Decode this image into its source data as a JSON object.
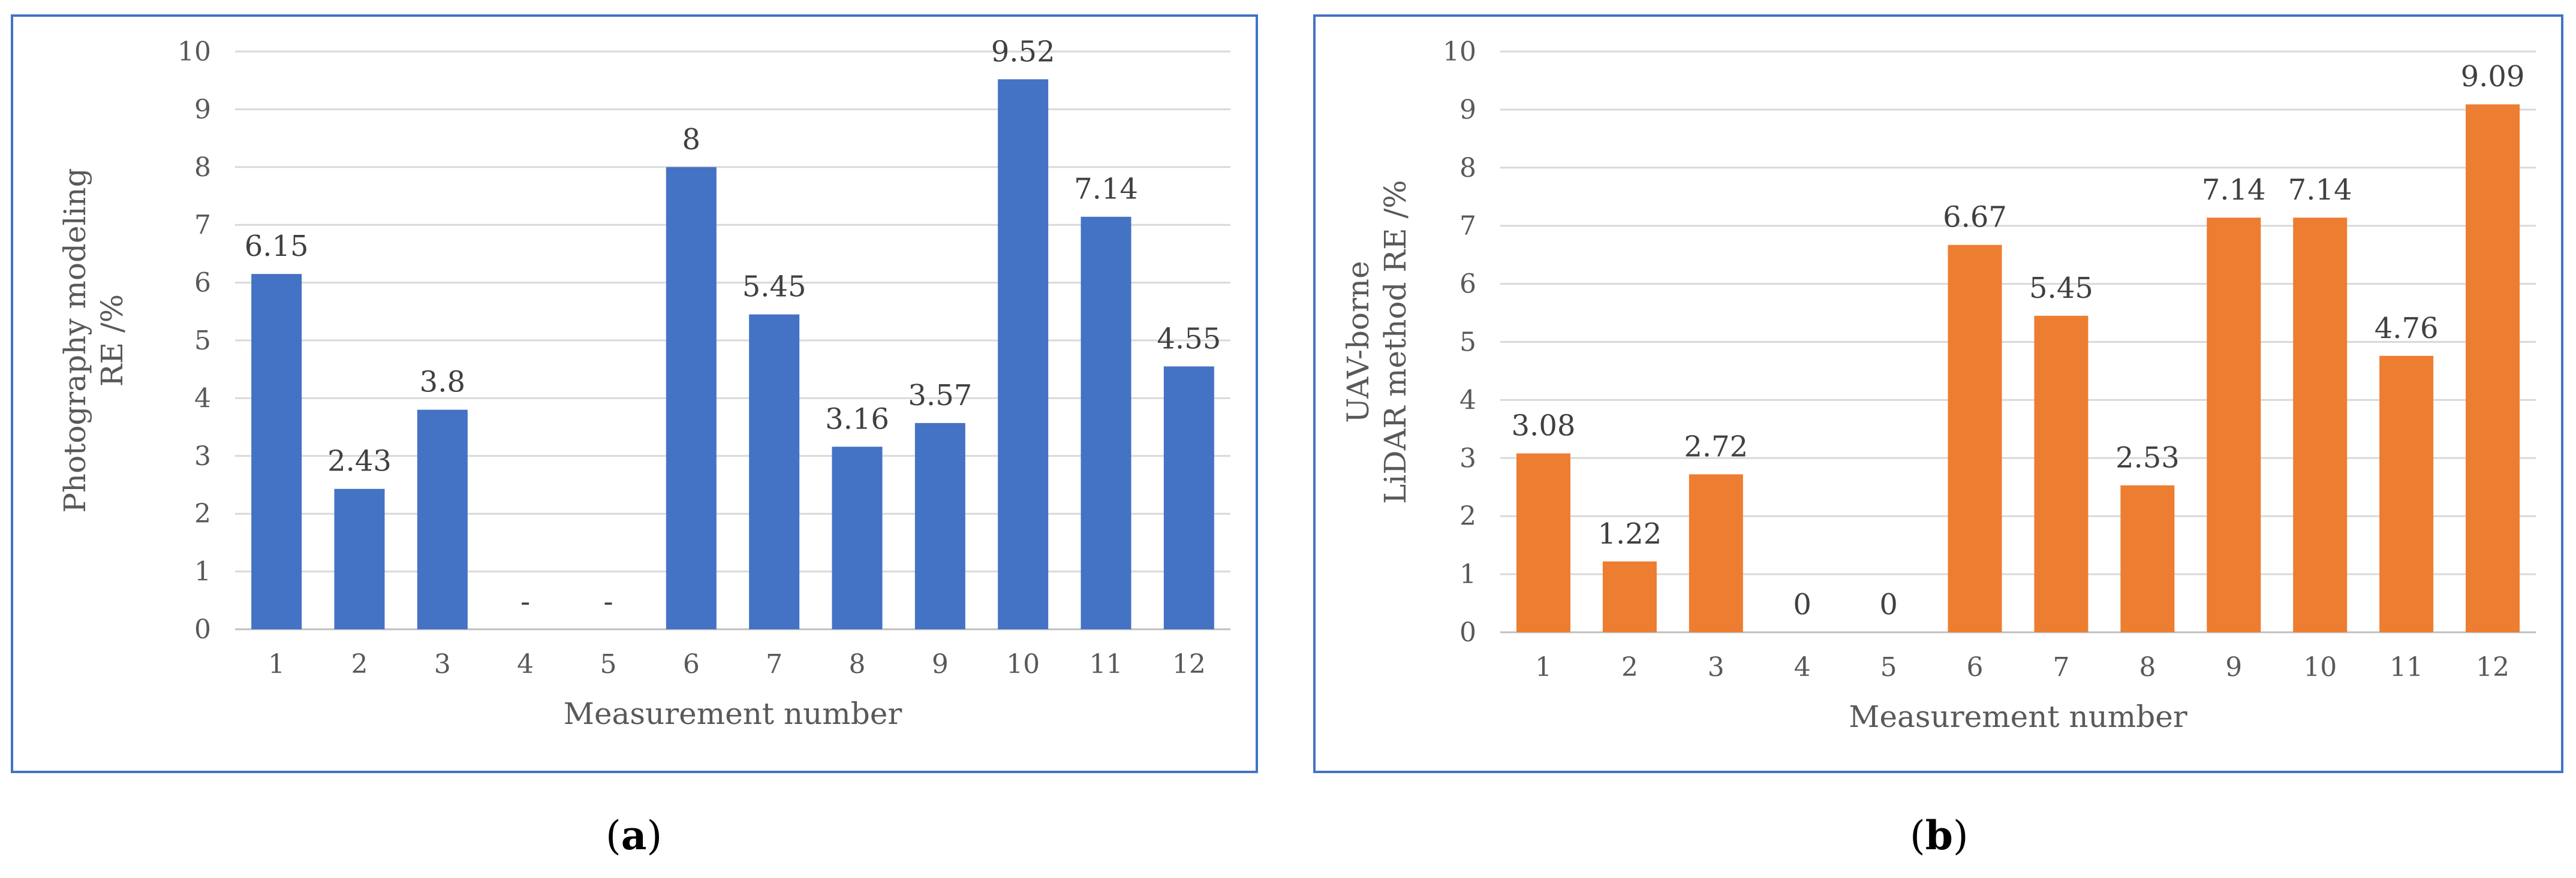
{
  "chart_data": [
    {
      "type": "bar",
      "panel": "a",
      "color": "#4472c4",
      "categories": [
        "1",
        "2",
        "3",
        "4",
        "5",
        "6",
        "7",
        "8",
        "9",
        "10",
        "11",
        "12"
      ],
      "values": [
        6.15,
        2.43,
        3.8,
        0,
        0,
        8,
        5.45,
        3.16,
        3.57,
        9.52,
        7.14,
        4.55
      ],
      "data_labels": [
        "6.15",
        "2.43",
        "3.8",
        "-",
        "-",
        "8",
        "5.45",
        "3.16",
        "3.57",
        "9.52",
        "7.14",
        "4.55"
      ],
      "yticks": [
        "0",
        "1",
        "2",
        "3",
        "4",
        "5",
        "6",
        "7",
        "8",
        "9",
        "10"
      ],
      "ylim": [
        0,
        10
      ],
      "xlabel": "Measurement number",
      "ylabel_lines": [
        "Photography modeling",
        "RE /%"
      ],
      "grid": true
    },
    {
      "type": "bar",
      "panel": "b",
      "color": "#ed7d31",
      "categories": [
        "1",
        "2",
        "3",
        "4",
        "5",
        "6",
        "7",
        "8",
        "9",
        "10",
        "11",
        "12"
      ],
      "values": [
        3.08,
        1.22,
        2.72,
        0,
        0,
        6.67,
        5.45,
        2.53,
        7.14,
        7.14,
        4.76,
        9.09
      ],
      "data_labels": [
        "3.08",
        "1.22",
        "2.72",
        "0",
        "0",
        "6.67",
        "5.45",
        "2.53",
        "7.14",
        "7.14",
        "4.76",
        "9.09"
      ],
      "yticks": [
        "0",
        "1",
        "2",
        "3",
        "4",
        "5",
        "6",
        "7",
        "8",
        "9",
        "10"
      ],
      "ylim": [
        0,
        10
      ],
      "xlabel": "Measurement number",
      "ylabel_lines": [
        "UAV-borne",
        "LiDAR method RE /%"
      ],
      "grid": true
    }
  ],
  "captions": {
    "a": {
      "open": "(",
      "letter": "a",
      "close": ")"
    },
    "b": {
      "open": "(",
      "letter": "b",
      "close": ")"
    }
  }
}
